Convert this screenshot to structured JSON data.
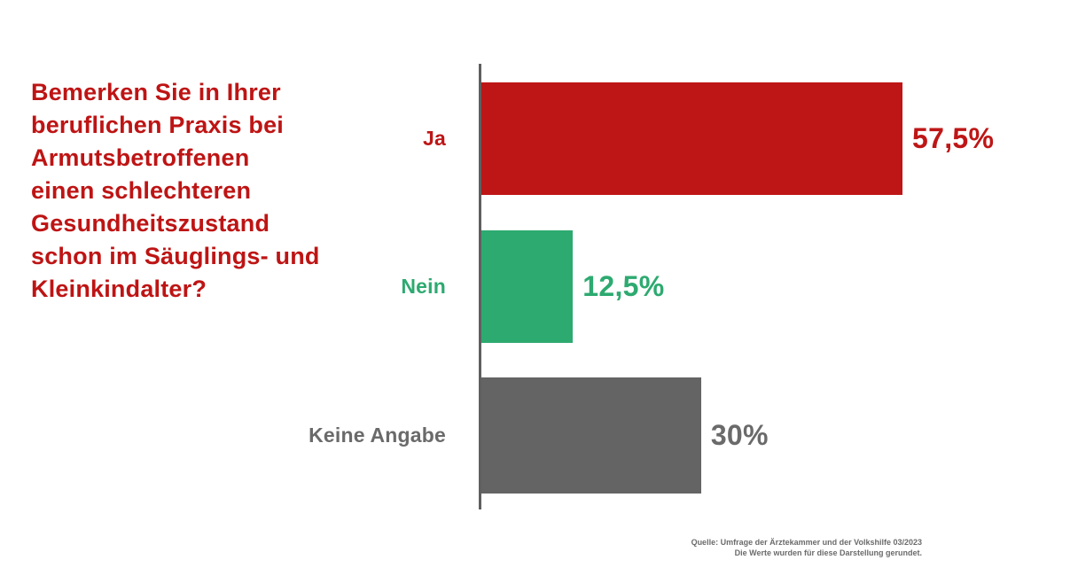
{
  "question": {
    "text": "Bemerken Sie in Ihrer\nberuflichen Praxis bei\nArmutsbetroffenen\neinen schlechteren\nGesundheitszustand\nschon im Säuglings- und\nKleinkindalter?",
    "color": "#be1414"
  },
  "chart_data": {
    "type": "bar",
    "orientation": "horizontal",
    "title": "Bemerken Sie in Ihrer beruflichen Praxis bei Armutsbetroffenen einen schlechteren Gesundheitszustand schon im Säuglings- und Kleinkindalter?",
    "categories": [
      "Ja",
      "Nein",
      "Keine Angabe"
    ],
    "values": [
      57.5,
      12.5,
      30
    ],
    "value_labels": [
      "57,5%",
      "12,5%",
      "30%"
    ],
    "bar_colors": [
      "#be1616",
      "#2daa70",
      "#646464"
    ],
    "text_colors": [
      "#be1616",
      "#2daa70",
      "#6a6a6a"
    ],
    "xlabel": "",
    "ylabel": "",
    "xlim": [
      0,
      60
    ],
    "grid": false,
    "legend": false,
    "axis_line_color": "#5f5f5f"
  },
  "source": {
    "line1": "Quelle: Umfrage der Ärztekammer und der Volkshilfe 03/2023",
    "line2": "Die Werte wurden für diese Darstellung gerundet.",
    "color": "#6b6b6b"
  }
}
